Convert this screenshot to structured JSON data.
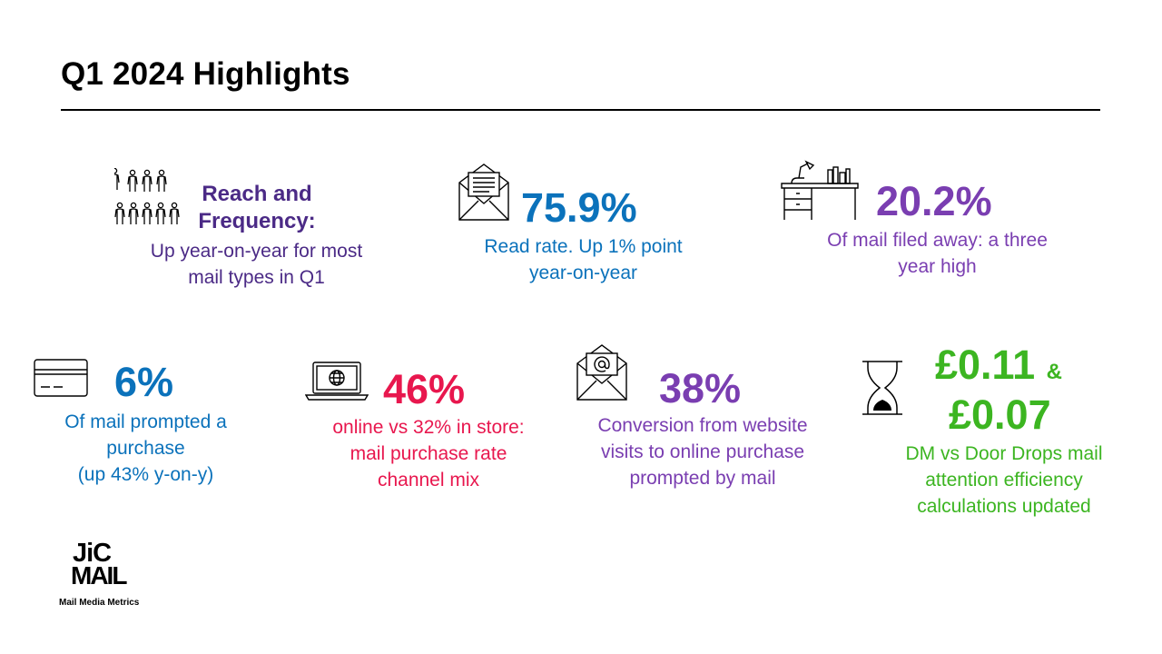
{
  "title": "Q1 2024 Highlights",
  "colors": {
    "purple_dark": "#4b2a86",
    "blue": "#0b72bb",
    "purple": "#7a3eb1",
    "pink": "#e8174e",
    "green": "#3cb521"
  },
  "highlights": {
    "reach": {
      "icon": "people-group-icon",
      "heading": "Reach and Frequency:",
      "text": "Up year-on-year for most mail types in Q1"
    },
    "read_rate": {
      "icon": "envelope-letter-icon",
      "value": "75.9%",
      "text": "Read rate. Up 1% point year-on-year"
    },
    "filed": {
      "icon": "desk-icon",
      "value": "20.2%",
      "text": "Of mail filed away: a three year high"
    },
    "purchase": {
      "icon": "credit-card-icon",
      "value": "6%",
      "text": "Of mail prompted a purchase",
      "note": "(up 43% y-on-y)"
    },
    "channel": {
      "icon": "laptop-globe-icon",
      "value": "46%",
      "text": "online vs 32% in store: mail purchase rate channel mix"
    },
    "conversion": {
      "icon": "email-at-icon",
      "value": "38%",
      "text": "Conversion from website visits to online purchase prompted by mail"
    },
    "efficiency": {
      "icon": "hourglass-icon",
      "value_1": "£0.11",
      "connector": "&",
      "value_2": "£0.07",
      "text": "DM vs Door Drops mail attention efficiency calculations updated"
    }
  },
  "logo": {
    "line1": "JiC",
    "line2": "MAIL",
    "tagline": "Mail Media Metrics"
  }
}
